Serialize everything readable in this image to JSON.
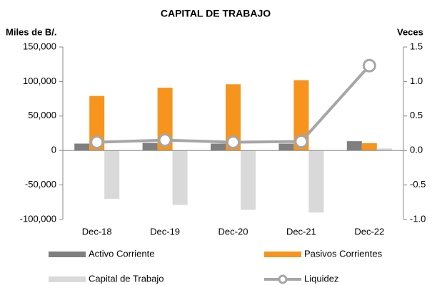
{
  "chart_data": {
    "type": "bar",
    "title": "CAPITAL DE TRABAJO",
    "y_label": "Miles de B/.",
    "y2_label": "Veces",
    "categories": [
      "Dec-18",
      "Dec-19",
      "Dec-20",
      "Dec-21",
      "Dec-22"
    ],
    "series": [
      {
        "name": "Activo Corriente",
        "color": "#7f7f7f",
        "type": "bar",
        "values": [
          10000,
          11000,
          10000,
          10000,
          13500
        ]
      },
      {
        "name": "Pasivos Corrientes",
        "color": "#f7941d",
        "type": "bar",
        "values": [
          79000,
          91000,
          96000,
          102000,
          10500
        ]
      },
      {
        "name": "Capital de Trabajo",
        "color": "#d9d9d9",
        "type": "bar",
        "values": [
          -70000,
          -79000,
          -86000,
          -90000,
          3000
        ]
      },
      {
        "name": "Liquidez",
        "color": "#a6a6a6",
        "type": "line",
        "axis": "y2",
        "values": [
          0.12,
          0.15,
          0.12,
          0.13,
          1.23
        ]
      }
    ],
    "ylim": [
      -100000,
      150000
    ],
    "yticks": [
      {
        "value": -100000,
        "label": "-100,000"
      },
      {
        "value": -50000,
        "label": "-50,000"
      },
      0,
      {
        "value": 50000,
        "label": "50,000"
      },
      {
        "value": 100000,
        "label": "100,000"
      },
      {
        "value": 150000,
        "label": "150,000"
      }
    ],
    "y2lim": [
      -1,
      1.5
    ],
    "y2ticks": [
      {
        "value": -1,
        "label": "-1.0"
      },
      -0.5,
      {
        "value": 0,
        "label": "0.0"
      },
      0.5,
      {
        "value": 1,
        "label": "1.0"
      },
      1.5
    ],
    "legend": "bottom"
  }
}
